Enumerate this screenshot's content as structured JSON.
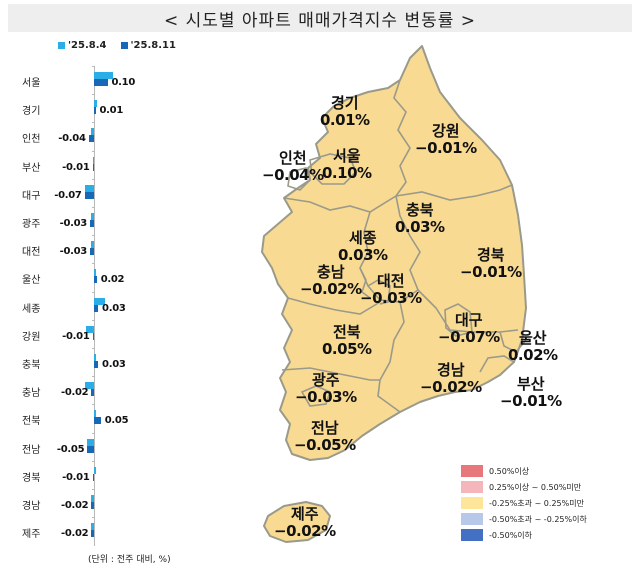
{
  "title": "< 시도별 아파트 매매가격지수 변동률 >",
  "legend": [
    {
      "label": "'25.8.4",
      "color": "#29aee8"
    },
    {
      "label": "'25.8.11",
      "color": "#1769b8"
    }
  ],
  "unit_note": "(단위 : 전주 대비, %)",
  "chart_data": {
    "type": "bar",
    "orientation": "horizontal",
    "title": "시도별 아파트 매매가격지수 변동률",
    "xlabel": "",
    "ylabel": "",
    "unit": "전주 대비, %",
    "categories": [
      "서울",
      "경기",
      "인천",
      "부산",
      "대구",
      "광주",
      "대전",
      "울산",
      "세종",
      "강원",
      "충북",
      "충남",
      "전북",
      "전남",
      "경북",
      "경남",
      "제주"
    ],
    "series": [
      {
        "name": "'25.8.4",
        "color": "#29aee8",
        "values": [
          0.14,
          0.02,
          -0.02,
          -0.01,
          -0.07,
          -0.02,
          -0.02,
          0.01,
          0.08,
          -0.06,
          0.01,
          -0.07,
          0.01,
          -0.05,
          0.0,
          -0.02,
          -0.02
        ]
      },
      {
        "name": "'25.8.11",
        "color": "#1769b8",
        "values": [
          0.1,
          0.01,
          -0.04,
          -0.01,
          -0.07,
          -0.03,
          -0.03,
          0.02,
          0.03,
          -0.01,
          0.03,
          -0.02,
          0.05,
          -0.05,
          -0.01,
          -0.02,
          -0.02
        ]
      }
    ],
    "data_labels": [
      "0.10",
      "0.01",
      "-0.04",
      "-0.01",
      "-0.07",
      "-0.03",
      "-0.03",
      "0.02",
      "0.03",
      "-0.01",
      "0.03",
      "-0.02",
      "0.05",
      "-0.05",
      "-0.01",
      "-0.02",
      "-0.02"
    ],
    "legend_position": "top"
  },
  "map": {
    "regions": [
      {
        "name": "경기",
        "value": "0.01%"
      },
      {
        "name": "강원",
        "value": "−0.01%"
      },
      {
        "name": "인천",
        "value": "−0.04%"
      },
      {
        "name": "서울",
        "value": "0.10%"
      },
      {
        "name": "충북",
        "value": "0.03%"
      },
      {
        "name": "세종",
        "value": "0.03%"
      },
      {
        "name": "경북",
        "value": "−0.01%"
      },
      {
        "name": "충남",
        "value": "−0.02%"
      },
      {
        "name": "대전",
        "value": "−0.03%"
      },
      {
        "name": "대구",
        "value": "−0.07%"
      },
      {
        "name": "울산",
        "value": "0.02%"
      },
      {
        "name": "전북",
        "value": "0.05%"
      },
      {
        "name": "경남",
        "value": "−0.02%"
      },
      {
        "name": "광주",
        "value": "−0.03%"
      },
      {
        "name": "부산",
        "value": "−0.01%"
      },
      {
        "name": "전남",
        "value": "−0.05%"
      },
      {
        "name": "제주",
        "value": "−0.02%"
      }
    ],
    "fill_color": "#f9da92",
    "border_color": "#9a9a8a",
    "legend": [
      {
        "label": "0.50%이상",
        "color": "#e8777c"
      },
      {
        "label": "0.25%이상 ~ 0.50%미만",
        "color": "#f4b6ba"
      },
      {
        "label": "-0.25%초과 ~ 0.25%미만",
        "color": "#fde59a"
      },
      {
        "label": "-0.50%초과 ~ -0.25%이하",
        "color": "#b8c8e8"
      },
      {
        "label": "-0.50%이하",
        "color": "#4470c4"
      }
    ]
  }
}
